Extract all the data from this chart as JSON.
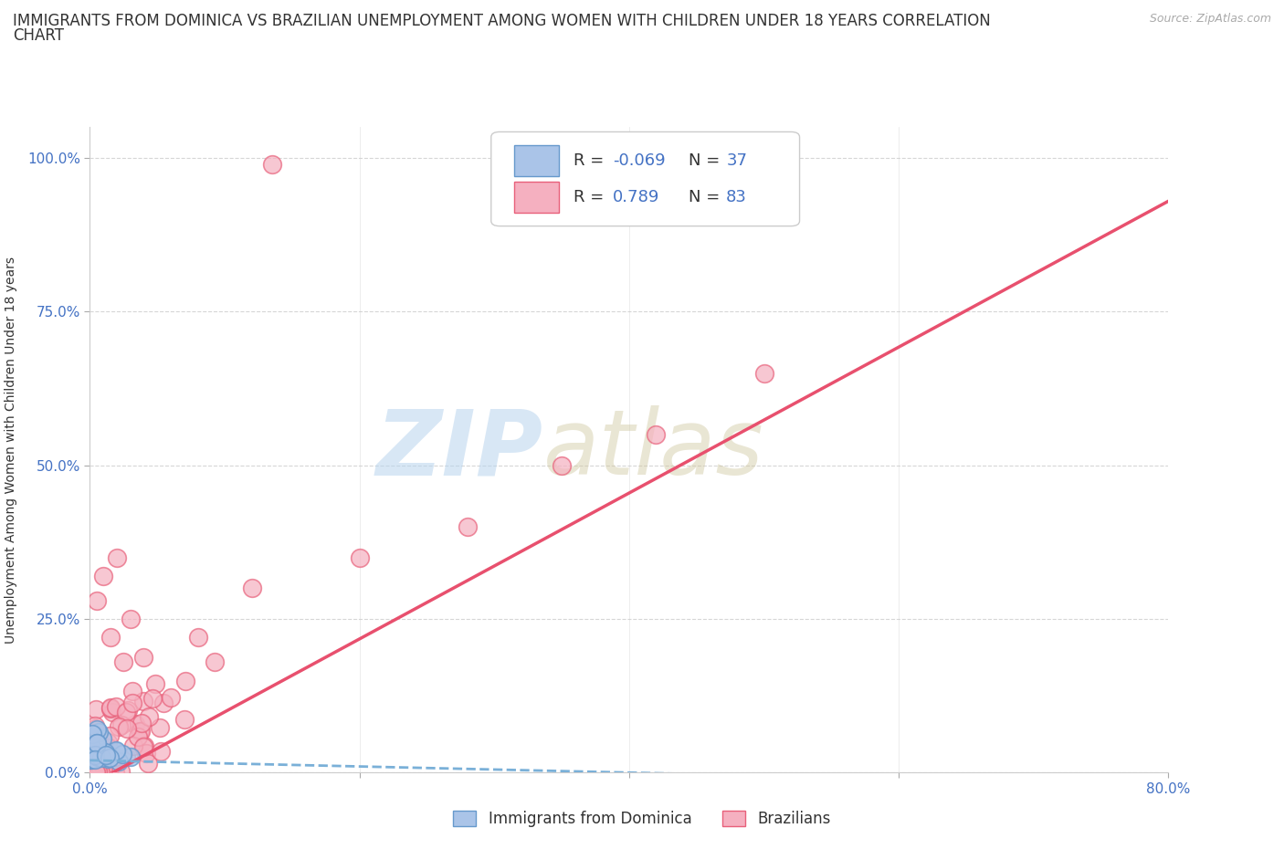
{
  "title_line1": "IMMIGRANTS FROM DOMINICA VS BRAZILIAN UNEMPLOYMENT AMONG WOMEN WITH CHILDREN UNDER 18 YEARS CORRELATION",
  "title_line2": "CHART",
  "source": "Source: ZipAtlas.com",
  "ylabel": "Unemployment Among Women with Children Under 18 years",
  "xlim": [
    0.0,
    0.8
  ],
  "ylim": [
    0.0,
    1.05
  ],
  "x_ticks": [
    0.0,
    0.2,
    0.4,
    0.6,
    0.8
  ],
  "x_tick_labels_show": [
    "0.0%",
    "",
    "",
    "",
    "80.0%"
  ],
  "y_ticks": [
    0.0,
    0.25,
    0.5,
    0.75,
    1.0
  ],
  "y_tick_labels": [
    "0.0%",
    "25.0%",
    "50.0%",
    "75.0%",
    "100.0%"
  ],
  "color_dominica_fill": "#aac4e8",
  "color_dominica_edge": "#6699cc",
  "color_brazil_fill": "#f5b0c0",
  "color_brazil_edge": "#e8607a",
  "color_dominica_line": "#7ab0d8",
  "color_brazil_line": "#e8506e",
  "R_dominica": -0.069,
  "N_dominica": 37,
  "R_brazil": 0.789,
  "N_brazil": 83,
  "watermark_zip": "ZIP",
  "watermark_atlas": "atlas",
  "legend_labels": [
    "Immigrants from Dominica",
    "Brazilians"
  ],
  "background_color": "#ffffff",
  "tick_color": "#4472c4",
  "grid_color": "#cccccc",
  "title_fontsize": 12,
  "axis_label_fontsize": 10,
  "tick_fontsize": 11
}
